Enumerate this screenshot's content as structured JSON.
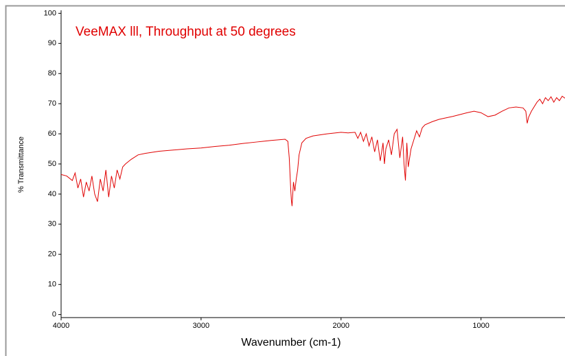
{
  "chart_data": {
    "type": "line",
    "title": "VeeMAX lll, Throughput at 50 degrees",
    "x_label": "Wavenumber (cm-1)",
    "y_label": "% Transmittance",
    "xlim": [
      4000,
      400
    ],
    "ylim": [
      -1,
      101
    ],
    "xticks": [
      4000,
      3000,
      2000,
      1000
    ],
    "yticks": [
      0,
      10,
      20,
      30,
      40,
      50,
      60,
      70,
      80,
      90,
      100
    ],
    "series": [
      {
        "name": "VeeMAX lll",
        "color": "#e00000",
        "x": [
          4000,
          3960,
          3920,
          3900,
          3880,
          3860,
          3840,
          3820,
          3800,
          3780,
          3760,
          3740,
          3720,
          3700,
          3680,
          3660,
          3640,
          3620,
          3600,
          3580,
          3560,
          3540,
          3500,
          3450,
          3400,
          3300,
          3200,
          3100,
          3000,
          2900,
          2800,
          2700,
          2600,
          2500,
          2400,
          2380,
          2370,
          2360,
          2355,
          2350,
          2345,
          2340,
          2330,
          2320,
          2310,
          2300,
          2280,
          2250,
          2200,
          2100,
          2000,
          1950,
          1900,
          1880,
          1860,
          1840,
          1820,
          1800,
          1780,
          1760,
          1740,
          1720,
          1700,
          1690,
          1680,
          1660,
          1640,
          1620,
          1600,
          1580,
          1560,
          1550,
          1540,
          1530,
          1520,
          1500,
          1480,
          1460,
          1440,
          1420,
          1400,
          1350,
          1300,
          1200,
          1100,
          1050,
          1000,
          950,
          900,
          850,
          800,
          750,
          700,
          680,
          670,
          660,
          640,
          600,
          580,
          560,
          540,
          520,
          500,
          480,
          460,
          440,
          420,
          400
        ],
        "values": [
          46.5,
          46,
          44.5,
          47,
          42,
          45,
          39,
          44,
          41,
          46,
          40,
          37.5,
          45,
          41,
          48,
          39,
          46,
          42,
          48,
          45,
          49,
          50,
          51.5,
          53,
          53.5,
          54.2,
          54.6,
          55,
          55.3,
          55.8,
          56.2,
          56.8,
          57.3,
          57.8,
          58.2,
          57.5,
          52,
          42,
          38,
          36,
          40,
          44,
          41,
          45,
          48,
          53,
          57,
          58.5,
          59.3,
          60,
          60.5,
          60.3,
          60.5,
          58.5,
          60.5,
          57.5,
          60,
          56,
          59,
          54,
          58,
          51,
          57,
          50,
          55,
          58,
          53,
          60,
          61.5,
          52,
          59,
          50,
          44.5,
          57,
          49,
          55,
          58,
          61,
          59,
          62,
          63,
          64,
          64.8,
          65.8,
          67,
          67.5,
          67,
          65.7,
          66.2,
          67.5,
          68.6,
          68.9,
          68.6,
          67.5,
          63.5,
          65.5,
          67.5,
          70.5,
          71.5,
          70,
          72,
          71,
          72.3,
          70.5,
          72,
          71,
          72.5,
          71.8
        ]
      }
    ]
  }
}
